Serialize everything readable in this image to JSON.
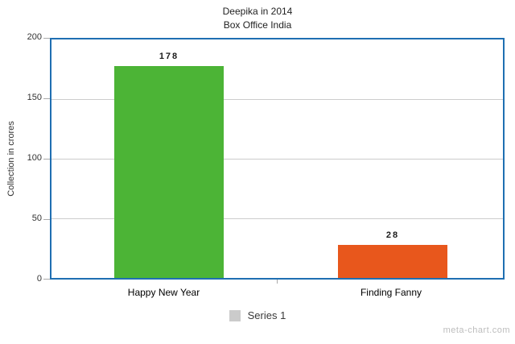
{
  "page": {
    "watermark": "meta-chart.com"
  },
  "chart_data": {
    "type": "bar",
    "title": "Deepika in 2014",
    "subtitle": "Box Office India",
    "categories": [
      "Happy New Year",
      "Finding Fanny"
    ],
    "values": [
      178,
      28
    ],
    "series": [
      {
        "name": "Series 1",
        "values": [
          178,
          28
        ]
      }
    ],
    "xlabel": "",
    "ylabel": "Collection in crores",
    "ylim": [
      0,
      200
    ],
    "yticks": [
      200,
      150,
      100,
      50,
      0
    ],
    "grid": "horizontal",
    "legend_position": "bottom",
    "legend_swatch_color": "#CBCBCB",
    "plot_border_color": "#1F6FB2",
    "bar_colors": [
      "#4CB436",
      "#E8571C"
    ]
  }
}
